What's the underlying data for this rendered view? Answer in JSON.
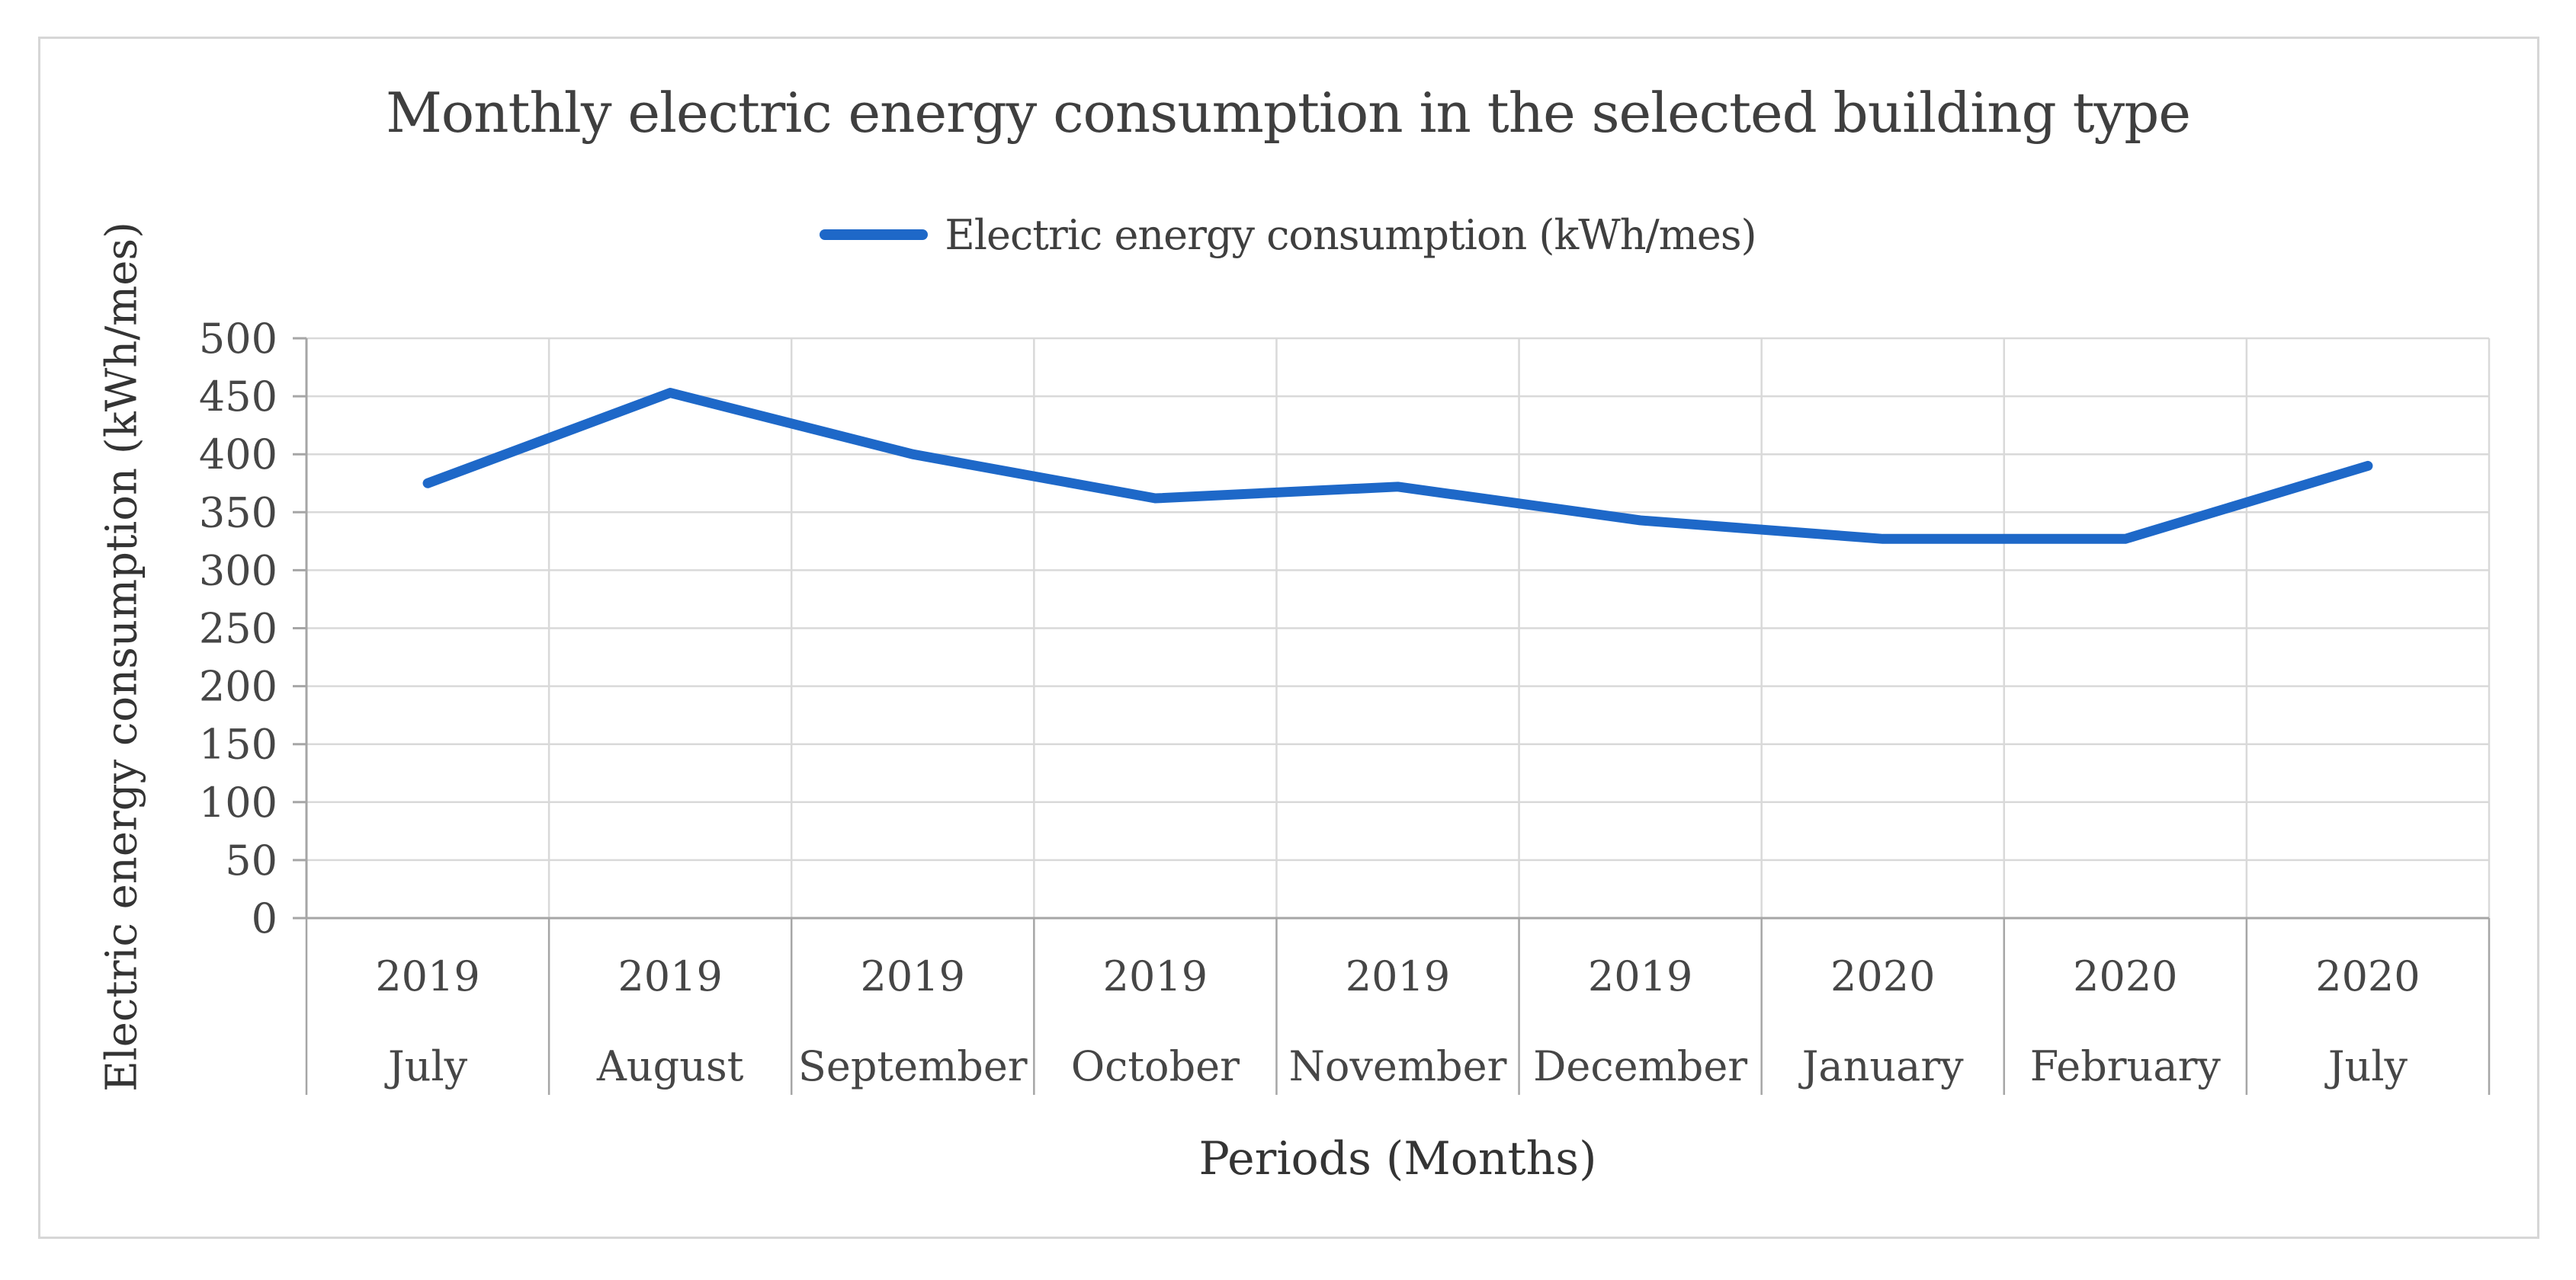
{
  "figure": {
    "border_color": "#D6D6D6",
    "background": "#FFFFFF"
  },
  "chart_data": {
    "type": "line",
    "title": "Monthly electric energy consumption in the selected building type",
    "xlabel": "Periods (Months)",
    "ylabel": "Electric energy consumption (kWh/mes)",
    "legend_position": "top-center",
    "grid": true,
    "categories": [
      {
        "year": "2019",
        "month": "July"
      },
      {
        "year": "2019",
        "month": "August"
      },
      {
        "year": "2019",
        "month": "September"
      },
      {
        "year": "2019",
        "month": "October"
      },
      {
        "year": "2019",
        "month": "November"
      },
      {
        "year": "2019",
        "month": "December"
      },
      {
        "year": "2020",
        "month": "January"
      },
      {
        "year": "2020",
        "month": "February"
      },
      {
        "year": "2020",
        "month": "July"
      }
    ],
    "series": [
      {
        "name": "Electric energy consumption (kWh/mes)",
        "values": [
          375,
          453,
          400,
          362,
          372,
          343,
          327,
          327,
          390
        ],
        "color": "#1E68C8"
      }
    ],
    "ylim": [
      0,
      500
    ],
    "ytick_step": 50,
    "yticks": [
      0,
      50,
      100,
      150,
      200,
      250,
      300,
      350,
      400,
      450,
      500
    ],
    "axis_color": "#A6A6A6",
    "gridline_color": "#D9D9D9",
    "text_color": "#404040"
  }
}
